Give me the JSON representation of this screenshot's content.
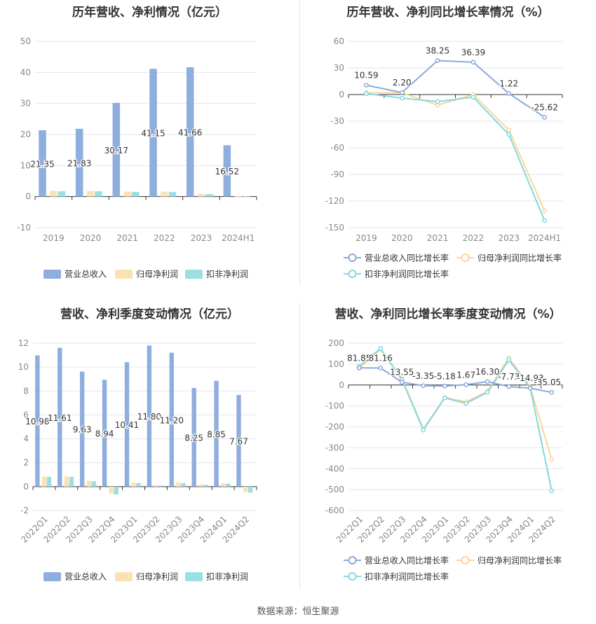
{
  "source_label": "数据来源：恒生聚源",
  "colors": {
    "revenue": "#8eaedd",
    "net_profit": "#fbe2b4",
    "deducted_profit": "#9adfe3",
    "revenue_line": "#8ca9dc",
    "net_profit_line": "#fcd59a",
    "deducted_line": "#81d9dd",
    "grid": "#e3e6ee",
    "axis_text": "#888888"
  },
  "chart_data": [
    {
      "id": "annual_amounts",
      "type": "bar",
      "title": "历年营收、净利情况（亿元）",
      "categories": [
        "2019",
        "2020",
        "2021",
        "2022",
        "2023",
        "2024H1"
      ],
      "ylim": [
        -10,
        50
      ],
      "yticks": [
        -10,
        0,
        10,
        20,
        30,
        40,
        50
      ],
      "grid": true,
      "legend_position": "bottom",
      "series": [
        {
          "name": "营业总收入",
          "values": [
            21.35,
            21.83,
            30.17,
            41.15,
            41.66,
            16.52
          ],
          "labels": [
            "21.35",
            "21.83",
            "30.17",
            "41.15",
            "41.66",
            "16.52"
          ]
        },
        {
          "name": "归母净利润",
          "values": [
            1.8,
            1.8,
            1.6,
            1.6,
            0.9,
            0.1
          ]
        },
        {
          "name": "扣非净利润",
          "values": [
            1.7,
            1.7,
            1.5,
            1.5,
            0.8,
            0.1
          ]
        }
      ]
    },
    {
      "id": "annual_growth",
      "type": "line",
      "title": "历年营收、净利同比增长率情况（%）",
      "categories": [
        "2019",
        "2020",
        "2021",
        "2022",
        "2023",
        "2024H1"
      ],
      "ylim": [
        -150,
        60
      ],
      "yticks": [
        -150,
        -120,
        -90,
        -60,
        -30,
        0,
        30,
        60
      ],
      "grid": true,
      "legend_position": "bottom",
      "series": [
        {
          "name": "营业总收入同比增长率",
          "values": [
            10.59,
            2.2,
            38.25,
            36.39,
            1.22,
            -25.62
          ],
          "labels": [
            "10.59",
            "2.20",
            "38.25",
            "36.39",
            "1.22",
            "-25.62"
          ]
        },
        {
          "name": "归母净利润同比增长率",
          "values": [
            2,
            2,
            -12,
            0,
            -40,
            -131
          ]
        },
        {
          "name": "扣非净利润同比增长率",
          "values": [
            1,
            -4,
            -8,
            -3,
            -45,
            -142
          ]
        }
      ]
    },
    {
      "id": "quarterly_amounts",
      "type": "bar",
      "title": "营收、净利季度变动情况（亿元）",
      "categories": [
        "2022Q1",
        "2022Q2",
        "2022Q3",
        "2022Q4",
        "2023Q1",
        "2023Q2",
        "2023Q3",
        "2023Q4",
        "2024Q1",
        "2024Q2"
      ],
      "ylim": [
        -2,
        12
      ],
      "yticks": [
        -2,
        0,
        2,
        4,
        6,
        8,
        10,
        12
      ],
      "grid": true,
      "legend_position": "bottom",
      "series": [
        {
          "name": "营业总收入",
          "values": [
            10.98,
            11.61,
            9.63,
            8.94,
            10.41,
            11.8,
            11.2,
            8.25,
            8.85,
            7.67
          ],
          "labels": [
            "10.98",
            "11.61",
            "9.63",
            "8.94",
            "10.41",
            "11.80",
            "11.20",
            "8.25",
            "8.85",
            "7.67"
          ]
        },
        {
          "name": "归母净利润",
          "values": [
            0.85,
            0.85,
            0.5,
            -0.6,
            0.35,
            0.12,
            0.35,
            0.2,
            0.28,
            -0.45
          ]
        },
        {
          "name": "扣非净利润",
          "values": [
            0.82,
            0.82,
            0.45,
            -0.65,
            0.3,
            0.1,
            0.3,
            0.15,
            0.25,
            -0.5
          ]
        }
      ]
    },
    {
      "id": "quarterly_growth",
      "type": "line",
      "title": "营收、净利同比增长率季度变动情况（%）",
      "categories": [
        "2022Q1",
        "2022Q2",
        "2022Q3",
        "2022Q4",
        "2023Q1",
        "2023Q2",
        "2023Q3",
        "2023Q4",
        "2024Q1",
        "2024Q2"
      ],
      "ylim": [
        -600,
        200
      ],
      "yticks": [
        -600,
        -500,
        -400,
        -300,
        -200,
        -100,
        0,
        100,
        200
      ],
      "grid": true,
      "legend_position": "bottom",
      "series": [
        {
          "name": "营业总收入同比增长率",
          "values": [
            81.85,
            81.16,
            13.55,
            -3.35,
            -5.18,
            1.67,
            16.3,
            -7.73,
            -14.93,
            -35.05
          ],
          "labels": [
            "81.85",
            "81.16",
            "13.55",
            "-3.35",
            "-5.18",
            "1.67",
            "16.30",
            "-7.73",
            "-14.93",
            "-35.05"
          ]
        },
        {
          "name": "归母净利润同比增长率",
          "values": [
            80,
            170,
            30,
            -210,
            -60,
            -80,
            -30,
            130,
            -10,
            -355
          ]
        },
        {
          "name": "扣非净利润同比增长率",
          "values": [
            90,
            175,
            25,
            -215,
            -62,
            -88,
            -35,
            120,
            -15,
            -505
          ]
        }
      ]
    }
  ]
}
